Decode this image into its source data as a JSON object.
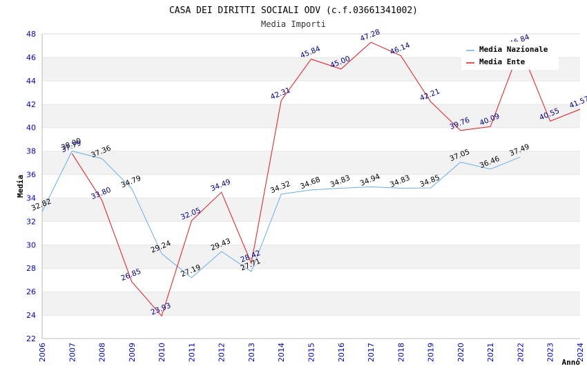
{
  "title": "CASA DEI DIRITTI SOCIALI ODV (c.f.03661341002)",
  "subtitle": "Media Importi",
  "chart_data": {
    "type": "line",
    "xlabel": "Anno",
    "ylabel": "Media",
    "x": [
      2006,
      2007,
      2008,
      2009,
      2010,
      2011,
      2012,
      2013,
      2014,
      2015,
      2016,
      2017,
      2018,
      2019,
      2020,
      2021,
      2022,
      2023,
      2024
    ],
    "xlim": [
      2006,
      2024
    ],
    "ylim": [
      22,
      48
    ],
    "yticks": [
      22,
      24,
      26,
      28,
      30,
      32,
      34,
      36,
      38,
      40,
      42,
      44,
      46,
      48
    ],
    "grid": "horizontal-bands",
    "legend_position": "top-right",
    "series": [
      {
        "name": "Media Nazionale",
        "color": "#6aaee8",
        "x": [
          2006,
          2007,
          2008,
          2009,
          2010,
          2011,
          2012,
          2013,
          2014,
          2015,
          2016,
          2017,
          2018,
          2019,
          2020,
          2021,
          2022
        ],
        "values": [
          32.82,
          38.0,
          37.36,
          34.79,
          29.24,
          27.19,
          29.43,
          27.71,
          34.32,
          34.68,
          34.83,
          34.94,
          34.83,
          34.85,
          37.05,
          36.46,
          37.49
        ],
        "labels": [
          "32.82",
          "38.00",
          "37.36",
          "34.79",
          "29.24",
          "27.19",
          "29.43",
          "27.71",
          "34.32",
          "34.68",
          "34.83",
          "34.94",
          "34.83",
          "34.85",
          "37.05",
          "36.46",
          "37.49"
        ]
      },
      {
        "name": "Media Ente",
        "color": "#e8141e",
        "x": [
          2007,
          2008,
          2009,
          2010,
          2011,
          2012,
          2013,
          2014,
          2015,
          2016,
          2017,
          2018,
          2019,
          2020,
          2021,
          2022,
          2023,
          2024
        ],
        "values": [
          37.79,
          33.8,
          26.85,
          23.93,
          32.05,
          34.49,
          28.42,
          42.31,
          45.84,
          45.0,
          47.28,
          46.14,
          42.21,
          39.76,
          40.09,
          46.84,
          40.55,
          41.57
        ],
        "labels": [
          "37.79",
          "33.80",
          "26.85",
          "23.93",
          "32.05",
          "34.49",
          "28.42",
          "42.31",
          "45.84",
          "45.00",
          "47.28",
          "46.14",
          "42.21",
          "39.76",
          "40.09",
          "46.84",
          "40.55",
          "41.57"
        ]
      }
    ]
  }
}
